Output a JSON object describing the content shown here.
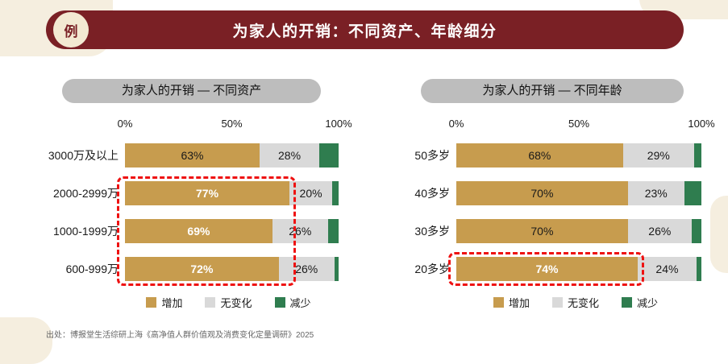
{
  "page": {
    "badge": "例",
    "title": "为家人的开销：不同资产、年龄细分",
    "footer": "出处：博报堂生活综研上海《高净值人群价值观及消费变化定量调研》2025"
  },
  "legend": [
    "增加",
    "无变化",
    "减少"
  ],
  "colors": {
    "increase": "#C79C4E",
    "nochange": "#D9D9D9",
    "decrease": "#2F7D4F",
    "banner": "#7A2025",
    "badge_bg": "#F3E9D2",
    "header_pill": "#BDBDBD",
    "highlight": "#EE1111",
    "deco": "#F5EEDF"
  },
  "chart_data": [
    {
      "type": "bar",
      "orientation": "horizontal",
      "stacked": true,
      "title": "为家人的开销 — 不同资产",
      "categories": [
        "3000万及以上",
        "2000-2999万",
        "1000-1999万",
        "600-999万"
      ],
      "series": [
        {
          "name": "增加",
          "values": [
            63,
            77,
            69,
            72
          ]
        },
        {
          "name": "无变化",
          "values": [
            28,
            20,
            26,
            26
          ]
        },
        {
          "name": "减少",
          "values": [
            9,
            3,
            5,
            2
          ]
        }
      ],
      "xlim": [
        0,
        100
      ],
      "x_ticks": [
        "0%",
        "50%",
        "100%"
      ],
      "emphasized_rows": [
        1,
        2,
        3
      ],
      "highlighted_categories": [
        "2000-2999万",
        "1000-1999万",
        "600-999万"
      ],
      "legend_position": "bottom"
    },
    {
      "type": "bar",
      "orientation": "horizontal",
      "stacked": true,
      "title": "为家人的开销 — 不同年龄",
      "categories": [
        "50多岁",
        "40多岁",
        "30多岁",
        "20多岁"
      ],
      "series": [
        {
          "name": "增加",
          "values": [
            68,
            70,
            70,
            74
          ]
        },
        {
          "name": "无变化",
          "values": [
            29,
            23,
            26,
            24
          ]
        },
        {
          "name": "减少",
          "values": [
            3,
            7,
            4,
            2
          ]
        }
      ],
      "xlim": [
        0,
        100
      ],
      "x_ticks": [
        "0%",
        "50%",
        "100%"
      ],
      "emphasized_rows": [
        3
      ],
      "highlighted_categories": [
        "20多岁"
      ],
      "legend_position": "bottom"
    }
  ]
}
